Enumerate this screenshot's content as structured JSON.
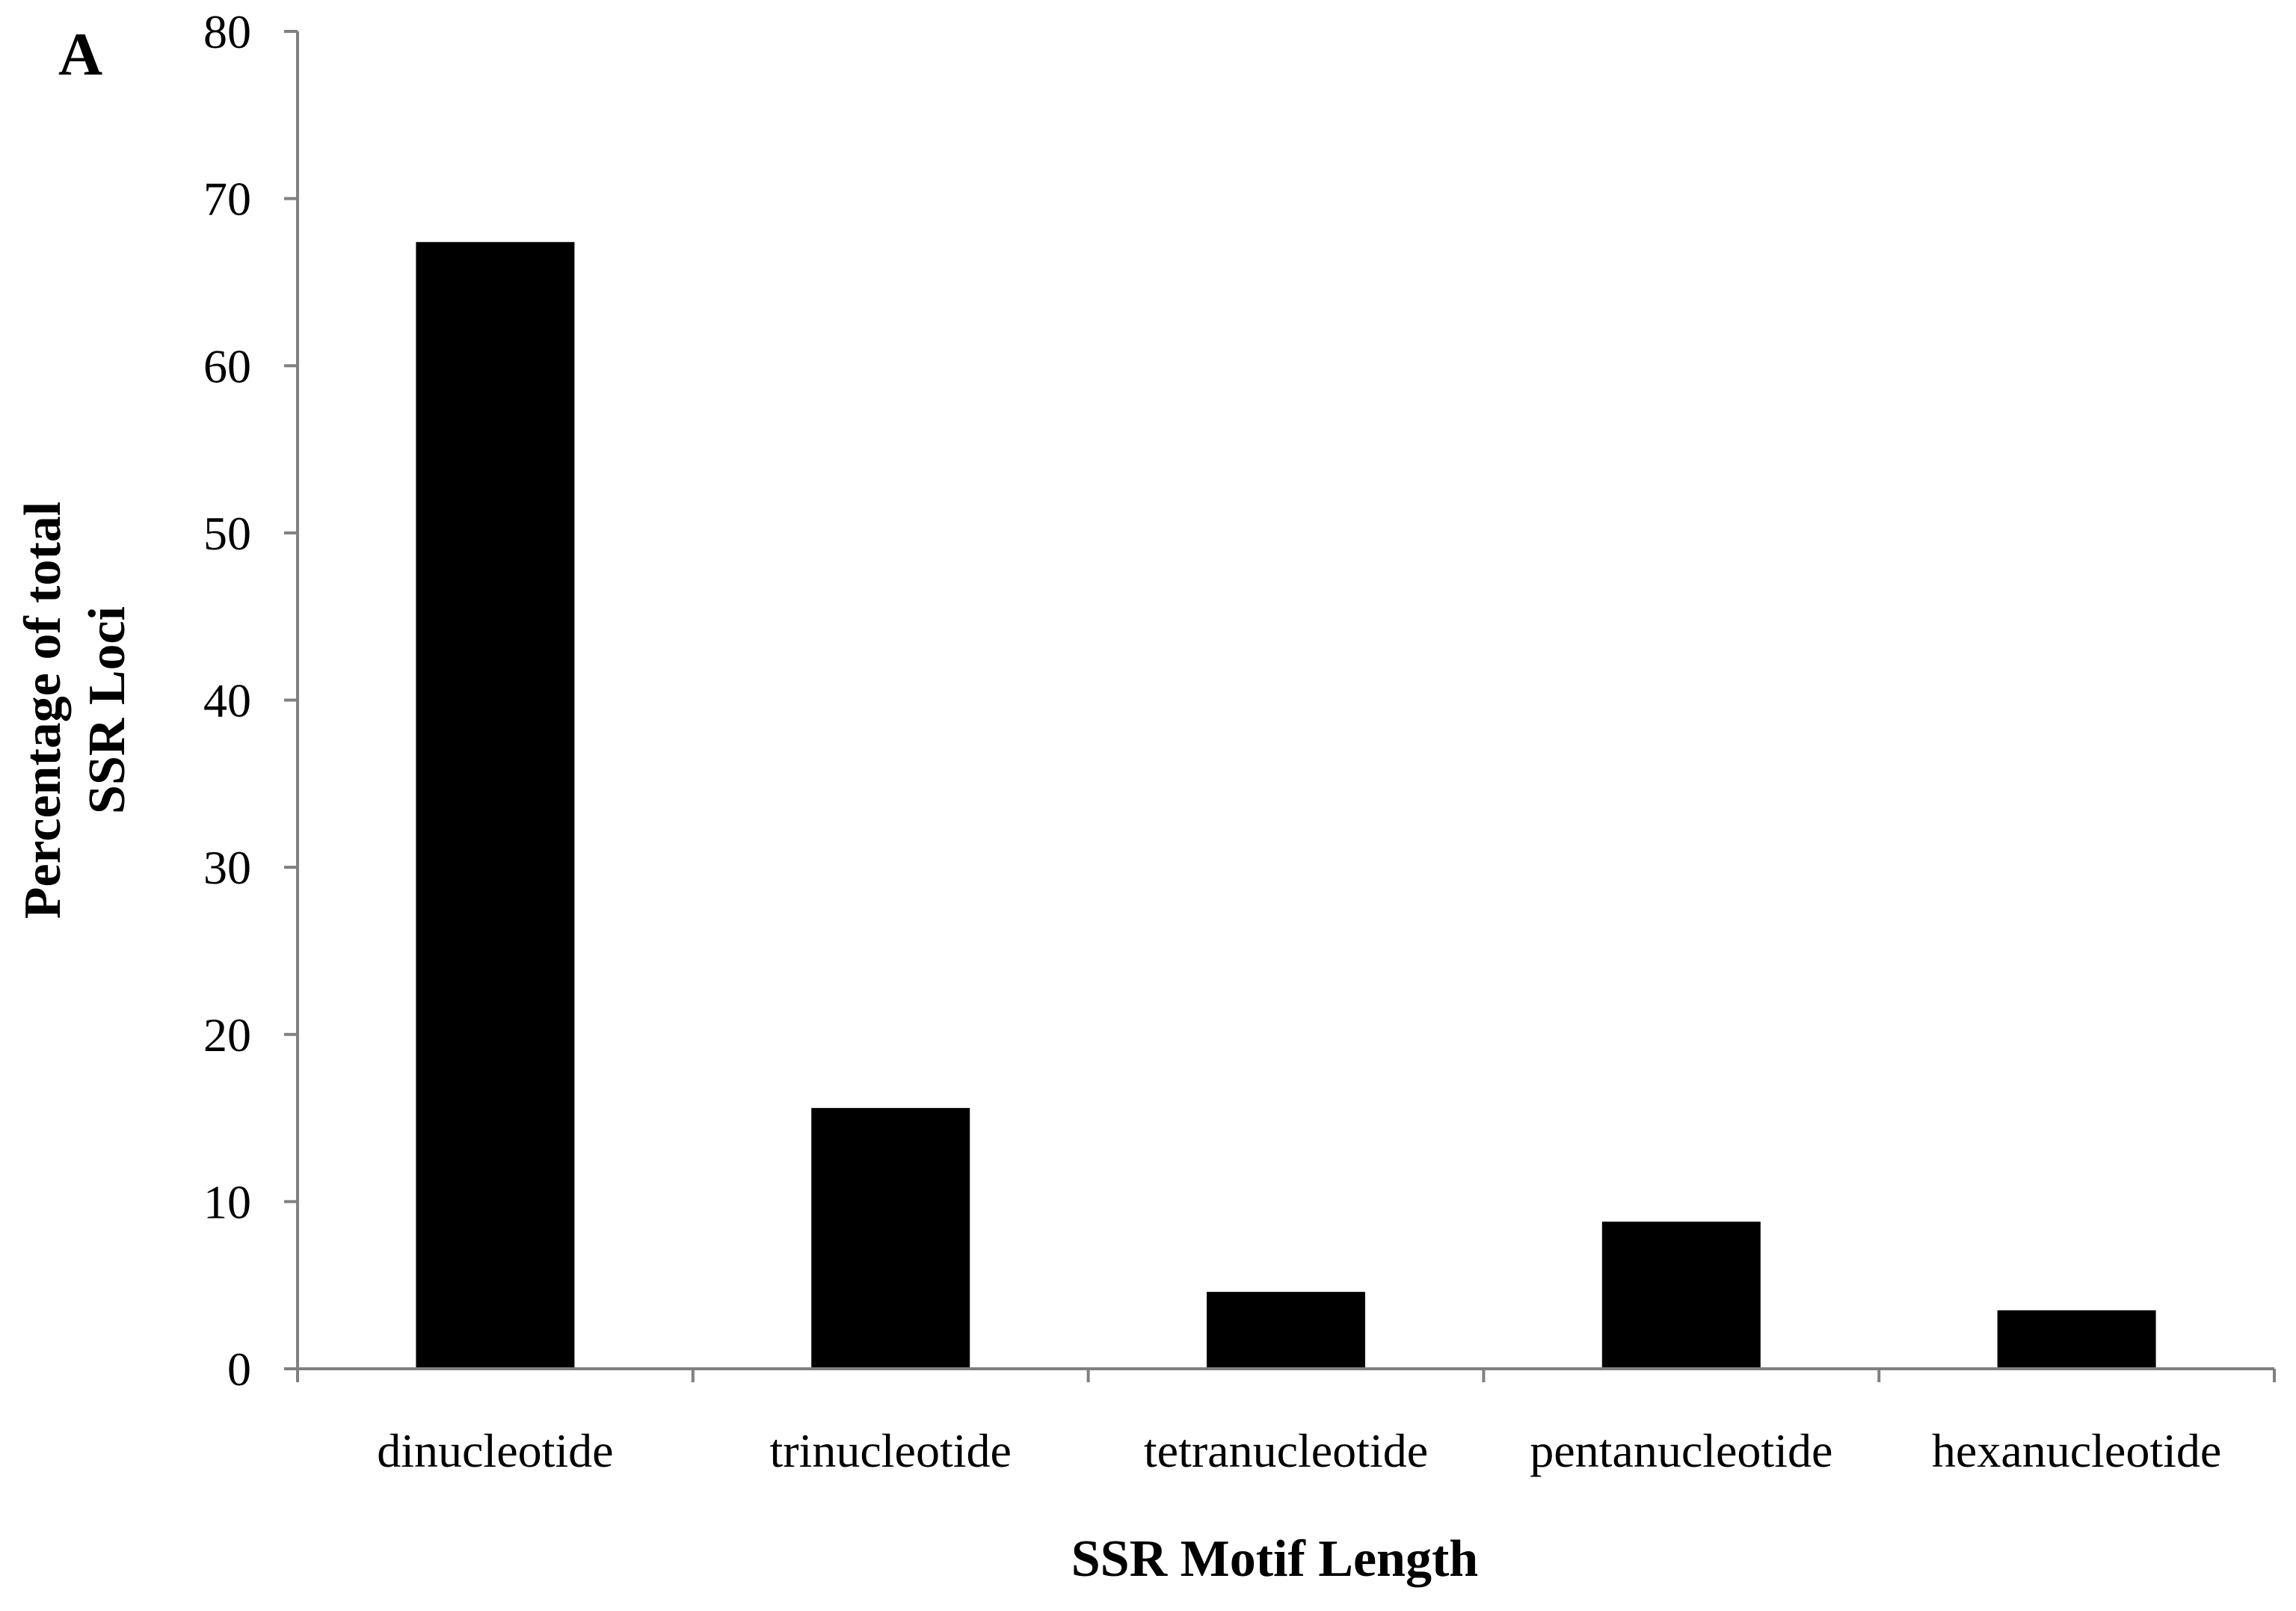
{
  "panel_label": "A",
  "chart_data": {
    "type": "bar",
    "categories": [
      "dinucleotide",
      "trinucleotide",
      "tetranucleotide",
      "pentanucleotide",
      "hexanucleotide"
    ],
    "values": [
      67.4,
      15.6,
      4.6,
      8.8,
      3.5
    ],
    "title": "",
    "xlabel": "SSR Motif Length",
    "ylabel_lines": [
      "Percentage of total",
      "SSR Loci"
    ],
    "ylim": [
      0,
      80
    ],
    "yticks": [
      0,
      10,
      20,
      30,
      40,
      50,
      60,
      70,
      80
    ],
    "bar_color": "#000000",
    "axis_color": "#808080",
    "grid": false,
    "legend": "none"
  }
}
